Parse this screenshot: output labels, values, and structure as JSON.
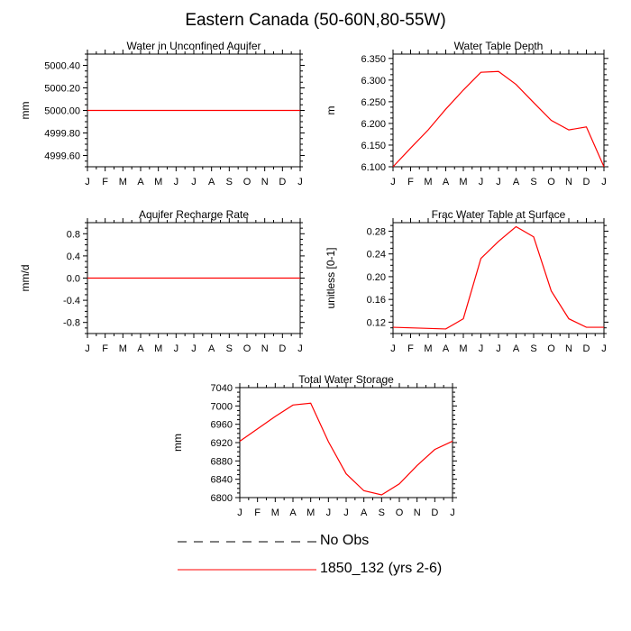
{
  "title": "Eastern Canada (50-60N,80-55W)",
  "months": [
    "J",
    "F",
    "M",
    "A",
    "M",
    "J",
    "J",
    "A",
    "S",
    "O",
    "N",
    "D",
    "J"
  ],
  "colors": {
    "model": "#ff0000",
    "obs": "#000000",
    "axis": "#000000"
  },
  "chart_data": [
    {
      "type": "line",
      "title": "Water in Unconfined Aquifer",
      "ylabel": "mm",
      "ylim": [
        4999.5,
        5000.5
      ],
      "yticks": [
        4999.6,
        4999.8,
        5000.0,
        5000.2,
        5000.4
      ],
      "ytick_labels": [
        "4999.60",
        "4999.80",
        "5000.00",
        "5000.20",
        "5000.40"
      ],
      "series": [
        {
          "name": "1850_132 (yrs 2-6)",
          "values": [
            5000,
            5000,
            5000,
            5000,
            5000,
            5000,
            5000,
            5000,
            5000,
            5000,
            5000,
            5000,
            5000
          ]
        }
      ]
    },
    {
      "type": "line",
      "title": "Water Table Depth",
      "ylabel": "m",
      "ylim": [
        6.1,
        6.36
      ],
      "yticks": [
        6.1,
        6.15,
        6.2,
        6.25,
        6.3,
        6.35
      ],
      "ytick_labels": [
        "6.100",
        "6.150",
        "6.200",
        "6.250",
        "6.300",
        "6.350"
      ],
      "series": [
        {
          "name": "1850_132 (yrs 2-6)",
          "values": [
            6.1,
            6.143,
            6.185,
            6.233,
            6.277,
            6.318,
            6.32,
            6.29,
            6.248,
            6.207,
            6.185,
            6.192,
            6.1
          ]
        }
      ]
    },
    {
      "type": "line",
      "title": "Aquifer Recharge Rate",
      "ylabel": "mm/d",
      "ylim": [
        -1.0,
        1.0
      ],
      "yticks": [
        -0.8,
        -0.4,
        0.0,
        0.4,
        0.8
      ],
      "ytick_labels": [
        "-0.8",
        "-0.4",
        "0.0",
        "0.4",
        "0.8"
      ],
      "series": [
        {
          "name": "1850_132 (yrs 2-6)",
          "values": [
            0,
            0,
            0,
            0,
            0,
            0,
            0,
            0,
            0,
            0,
            0,
            0,
            0
          ]
        }
      ]
    },
    {
      "type": "line",
      "title": "Frac Water Table at Surface",
      "ylabel": "unitless [0-1]",
      "ylim": [
        0.1,
        0.295
      ],
      "yticks": [
        0.12,
        0.16,
        0.2,
        0.24,
        0.28
      ],
      "ytick_labels": [
        "0.12",
        "0.16",
        "0.20",
        "0.24",
        "0.28"
      ],
      "series": [
        {
          "name": "1850_132 (yrs 2-6)",
          "values": [
            0.111,
            0.11,
            0.109,
            0.108,
            0.126,
            0.232,
            0.262,
            0.288,
            0.27,
            0.175,
            0.126,
            0.111,
            0.111
          ]
        }
      ]
    },
    {
      "type": "line",
      "title": "Total Water Storage",
      "ylabel": "mm",
      "ylim": [
        6800,
        7040
      ],
      "yticks": [
        6800,
        6840,
        6880,
        6920,
        6960,
        7000,
        7040
      ],
      "ytick_labels": [
        "6800",
        "6840",
        "6880",
        "6920",
        "6960",
        "7000",
        "7040"
      ],
      "series": [
        {
          "name": "1850_132 (yrs 2-6)",
          "values": [
            6923,
            6950,
            6977,
            7002,
            7006,
            6922,
            6852,
            6815,
            6806,
            6830,
            6870,
            6905,
            6923
          ]
        }
      ]
    }
  ],
  "legend": [
    {
      "label": "No Obs",
      "style": "dashed",
      "color": "#000000"
    },
    {
      "label": "1850_132 (yrs 2-6)",
      "style": "solid",
      "color": "#ff0000"
    }
  ]
}
